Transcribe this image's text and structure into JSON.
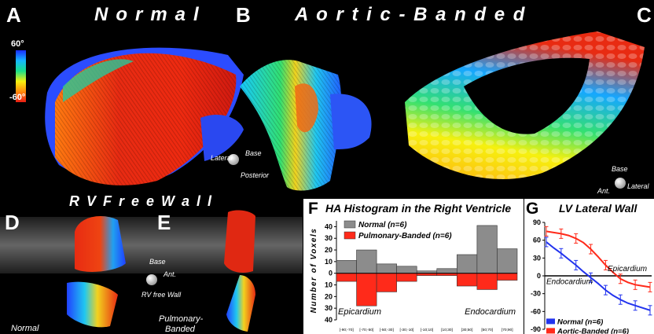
{
  "panels": {
    "A": {
      "letter": "A",
      "title": "Normal"
    },
    "B": {
      "letter": "B",
      "title": "A o r t i c - B a n d e d"
    },
    "C": {
      "letter": "C"
    },
    "D": {
      "letter": "D",
      "caption": "Normal"
    },
    "E": {
      "letter": "E",
      "caption1": "Pulmonary-",
      "caption2": "Banded"
    },
    "F": {
      "letter": "F",
      "title": "HA Histogram in the Right Ventricle"
    },
    "G": {
      "letter": "G",
      "title": "LV Lateral Wall"
    }
  },
  "rv_title": "R V   F r e e   W a l l",
  "colorbar": {
    "top": "60°",
    "bottom": "-60°"
  },
  "axes_legends": {
    "b": {
      "base": "Base",
      "lateral": "Lateral",
      "posterior": "Posterior"
    },
    "c": {
      "base": "Base",
      "ant": "Ant.",
      "lateral": "Lateral"
    },
    "e": {
      "base": "Base",
      "ant": "Ant.",
      "rv": "RV free Wall"
    }
  },
  "chart_data": [
    {
      "type": "bar",
      "title": "HA Histogram in the Right Ventricle",
      "ylabel": "Number of Voxels",
      "categories": [
        "[-90;-70]",
        "[-70;-50]",
        "[-50;-30]",
        "[-30;-10]",
        "[-10;10]",
        "[10;30]",
        "[30;50]",
        "[50;70]",
        "[70;90]"
      ],
      "series": [
        {
          "name": "Normal (n=6)",
          "color": "#8c8c8c",
          "values": [
            11,
            20,
            8,
            6,
            2,
            4,
            16,
            41,
            21
          ]
        },
        {
          "name": "Pulmonary-Banded (n=6)",
          "color": "#ff2a1a",
          "values": [
            -7,
            -28,
            -16,
            -7,
            -2,
            -2,
            -11,
            -14,
            -6
          ]
        }
      ],
      "ylim": [
        -40,
        45
      ],
      "yticks": [
        "40",
        "30",
        "20",
        "10",
        "0",
        "10",
        "20",
        "30",
        "40"
      ],
      "annotations": [
        "Epicardium",
        "Endocardium"
      ]
    },
    {
      "type": "line",
      "title": "LV Lateral Wall",
      "ylim": [
        -90,
        90
      ],
      "yticks": [
        "90",
        "60",
        "30",
        "0",
        "-30",
        "-60",
        "-90"
      ],
      "series": [
        {
          "name": "Normal (n=6)",
          "color": "#2233ee",
          "values": [
            57,
            47,
            38,
            28,
            18,
            7,
            -3,
            -13,
            -24,
            -33,
            -40,
            -46,
            -50,
            -54,
            -58
          ]
        },
        {
          "name": "Aortic-Banded (n=6)",
          "color": "#ff2a1a",
          "values": [
            75,
            73,
            71,
            68,
            63,
            56,
            45,
            32,
            18,
            6,
            -5,
            -11,
            -15,
            -17,
            -19
          ]
        }
      ],
      "annotations": [
        "Epicardium",
        "Endocardium"
      ]
    }
  ]
}
